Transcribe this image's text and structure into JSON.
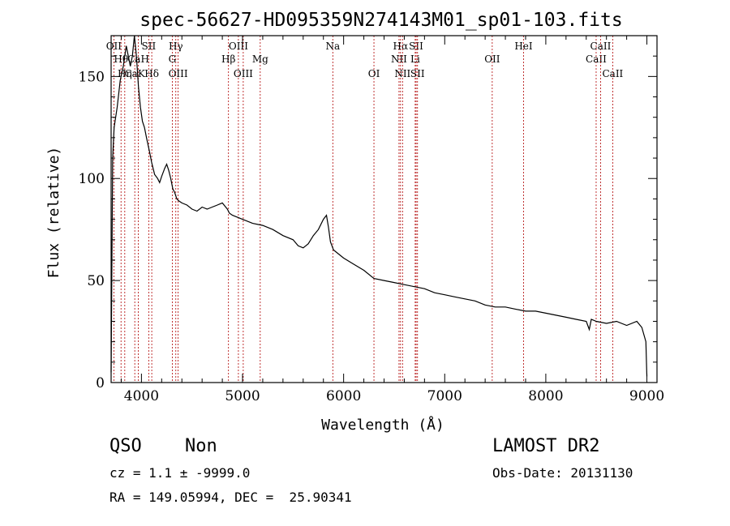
{
  "chart_data": {
    "type": "line",
    "title": "spec-56627-HD095359N274143M01_sp01-103.fits",
    "xlabel": "Wavelength (Å)",
    "ylabel": "Flux (relative)",
    "xlim": [
      3700,
      9100
    ],
    "ylim": [
      0,
      170
    ],
    "xticks": [
      4000,
      5000,
      6000,
      7000,
      8000,
      9000
    ],
    "yticks": [
      0,
      50,
      100,
      150
    ],
    "series": [
      {
        "x": [
          3700,
          3715,
          3730,
          3760,
          3790,
          3820,
          3850,
          3870,
          3890,
          3910,
          3930,
          3950,
          3970,
          3990,
          4010,
          4030,
          4050,
          4080,
          4100,
          4130,
          4160,
          4180,
          4200,
          4230,
          4250,
          4270,
          4290,
          4310,
          4330,
          4350,
          4370,
          4400,
          4450,
          4500,
          4550,
          4600,
          4650,
          4700,
          4750,
          4800,
          4850,
          4870,
          4900,
          4950,
          5000,
          5100,
          5200,
          5300,
          5400,
          5500,
          5550,
          5600,
          5650,
          5700,
          5750,
          5800,
          5830,
          5850,
          5870,
          5900,
          5950,
          6000,
          6100,
          6200,
          6300,
          6400,
          6500,
          6600,
          6700,
          6800,
          6900,
          7000,
          7100,
          7200,
          7300,
          7400,
          7500,
          7600,
          7700,
          7800,
          7900,
          8000,
          8100,
          8200,
          8300,
          8400,
          8430,
          8450,
          8500,
          8600,
          8700,
          8800,
          8900,
          8950,
          8990,
          9000
        ],
        "y": [
          5,
          110,
          125,
          135,
          148,
          155,
          165,
          160,
          155,
          160,
          170,
          160,
          145,
          135,
          128,
          125,
          120,
          113,
          108,
          102,
          100,
          98,
          101,
          105,
          107,
          104,
          100,
          95,
          93,
          90,
          89,
          88,
          87,
          85,
          84,
          86,
          85,
          86,
          87,
          88,
          85,
          83,
          82,
          81,
          80,
          78,
          77,
          75,
          72,
          70,
          67,
          66,
          68,
          72,
          75,
          80,
          82,
          76,
          69,
          65,
          63,
          61,
          58,
          55,
          51,
          50,
          49,
          48,
          47,
          46,
          44,
          43,
          42,
          41,
          40,
          38,
          37,
          37,
          36,
          35,
          35,
          34,
          33,
          32,
          31,
          30,
          26,
          31,
          30,
          29,
          30,
          28,
          30,
          27,
          20,
          3
        ]
      }
    ],
    "emission_lines": [
      {
        "label": "OII",
        "x": 3727,
        "row": 1
      },
      {
        "label": "Hθ",
        "x": 3798,
        "row": 2
      },
      {
        "label": "Hη",
        "x": 3835,
        "row": 3
      },
      {
        "label": "CaK",
        "x": 3934,
        "row": 3
      },
      {
        "label": "CaH",
        "x": 3969,
        "row": 2
      },
      {
        "label": "SII",
        "x": 4072,
        "row": 1
      },
      {
        "label": "Hδ",
        "x": 4102,
        "row": 3
      },
      {
        "label": "Hγ",
        "x": 4340,
        "row": 1
      },
      {
        "label": "G",
        "x": 4305,
        "row": 2
      },
      {
        "label": "OIII",
        "x": 4363,
        "row": 3
      },
      {
        "label": "Hβ",
        "x": 4861,
        "row": 2
      },
      {
        "label": "OIII",
        "x": 4959,
        "row": 1
      },
      {
        "label": "OIII",
        "x": 5007,
        "row": 3
      },
      {
        "label": "Mg",
        "x": 5175,
        "row": 2
      },
      {
        "label": "Na",
        "x": 5893,
        "row": 1
      },
      {
        "label": "OI",
        "x": 6300,
        "row": 3
      },
      {
        "label": "NII",
        "x": 6548,
        "row": 2
      },
      {
        "label": "Hα",
        "x": 6563,
        "row": 1
      },
      {
        "label": "NII",
        "x": 6583,
        "row": 3
      },
      {
        "label": "Li",
        "x": 6708,
        "row": 2
      },
      {
        "label": "SII",
        "x": 6717,
        "row": 1
      },
      {
        "label": "SII",
        "x": 6731,
        "row": 3
      },
      {
        "label": "OII",
        "x": 7470,
        "row": 2
      },
      {
        "label": "HeI",
        "x": 7780,
        "row": 1
      },
      {
        "label": "CaII",
        "x": 8498,
        "row": 2
      },
      {
        "label": "CaII",
        "x": 8542,
        "row": 1
      },
      {
        "label": "CaII",
        "x": 8662,
        "row": 3
      }
    ],
    "line_color": "#000000",
    "marker_color": "#b00000"
  },
  "info": {
    "class": "QSO",
    "subclass": "Non",
    "survey": "LAMOST DR2",
    "cz": "cz = 1.1 ± -9999.0",
    "obs_date": "Obs-Date: 20131130",
    "coords": "RA = 149.05994, DEC =  25.90341"
  }
}
